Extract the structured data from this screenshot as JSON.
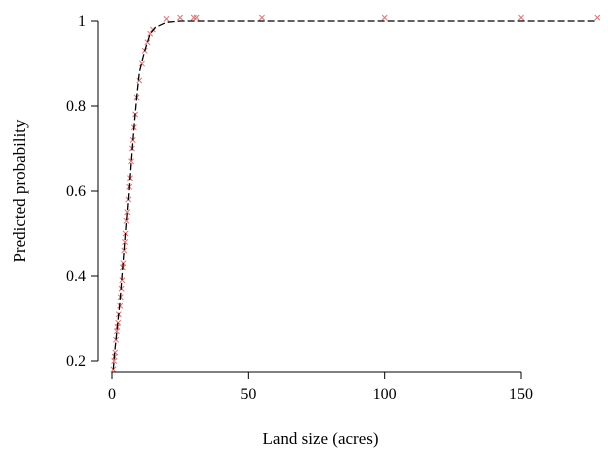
{
  "chart_data": {
    "type": "scatter",
    "xlabel": "Land size (acres)",
    "ylabel": "Predicted probability",
    "xlim": [
      0,
      178
    ],
    "ylim": [
      0.17,
      1.01
    ],
    "xticks": [
      0,
      50,
      100,
      150
    ],
    "xtick_labels": [
      "0",
      "50",
      "100",
      "150"
    ],
    "yticks": [
      0.2,
      0.4,
      0.6,
      0.8,
      1.0
    ],
    "ytick_labels": [
      "0.2",
      "0.4",
      "0.6",
      "0.8",
      "1"
    ],
    "grid": false,
    "marker_color": "#e07b7b",
    "line_color": "#000000",
    "line": {
      "name": "",
      "x": [
        0.5,
        1,
        1.5,
        2,
        2.5,
        3,
        3.5,
        4,
        5,
        6,
        7,
        8,
        9,
        10,
        12,
        14,
        16,
        20,
        25,
        30,
        55,
        100,
        150,
        178
      ],
      "y": [
        0.18,
        0.22,
        0.25,
        0.28,
        0.31,
        0.34,
        0.38,
        0.42,
        0.5,
        0.58,
        0.67,
        0.75,
        0.82,
        0.88,
        0.93,
        0.97,
        0.985,
        0.997,
        1.0,
        1.0,
        1.0,
        1.0,
        1.0,
        1.0
      ]
    },
    "points": {
      "x": [
        0.5,
        0.8,
        1,
        1.2,
        1.5,
        1.8,
        2,
        2.3,
        2.5,
        3,
        3.2,
        3.5,
        3.8,
        4,
        4.2,
        4.5,
        4.8,
        5,
        5.3,
        5.6,
        6,
        6.3,
        6.6,
        7,
        7.3,
        7.6,
        8,
        8.5,
        9,
        10,
        11,
        12,
        13,
        14,
        15,
        20,
        25,
        30,
        31,
        55,
        100,
        150,
        178
      ],
      "y": [
        0.18,
        0.2,
        0.21,
        0.22,
        0.25,
        0.27,
        0.28,
        0.29,
        0.31,
        0.33,
        0.35,
        0.37,
        0.39,
        0.42,
        0.43,
        0.46,
        0.48,
        0.5,
        0.53,
        0.55,
        0.58,
        0.61,
        0.63,
        0.67,
        0.7,
        0.72,
        0.75,
        0.78,
        0.82,
        0.86,
        0.9,
        0.93,
        0.95,
        0.97,
        0.98,
        1.005,
        1.008,
        1.008,
        1.008,
        1.008,
        1.008,
        1.008,
        1.008
      ]
    }
  }
}
